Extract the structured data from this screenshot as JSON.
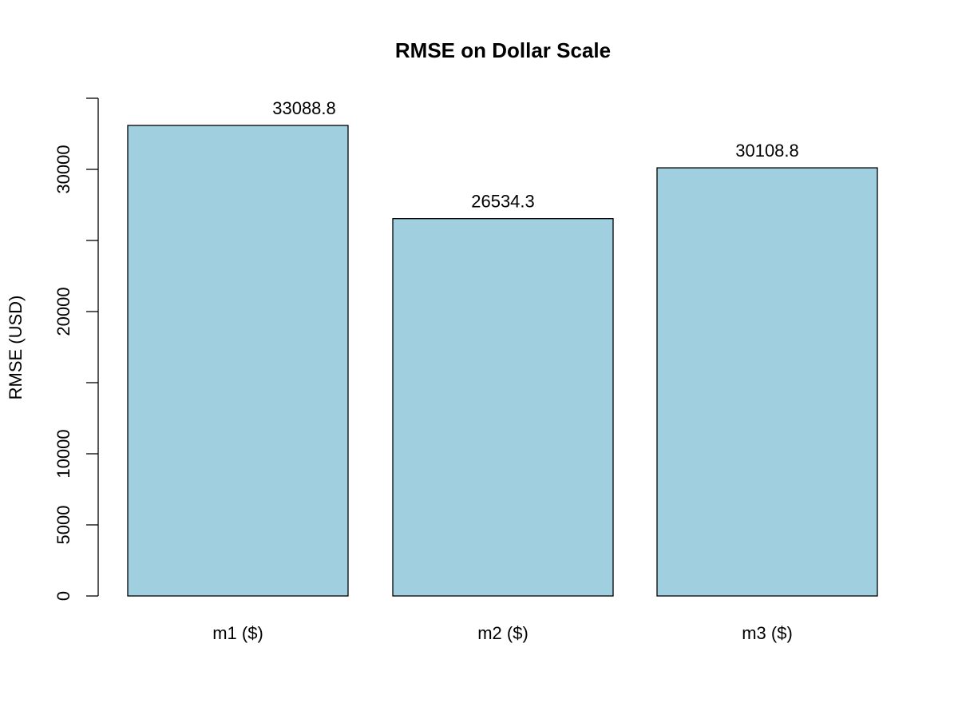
{
  "chart_data": {
    "type": "bar",
    "title": "RMSE on Dollar Scale",
    "ylabel": "RMSE (USD)",
    "xlabel": "",
    "categories": [
      "m1 ($)",
      "m2 ($)",
      "m3 ($)"
    ],
    "values": [
      33088.8,
      26534.3,
      30108.8
    ],
    "value_labels": [
      "33088.8",
      "26534.3",
      "30108.8"
    ],
    "ylim": [
      0,
      35000
    ],
    "yticks": [
      0,
      5000,
      10000,
      15000,
      20000,
      25000,
      30000,
      35000
    ],
    "ytick_labels": [
      "0",
      "5000",
      "10000",
      "",
      "20000",
      "",
      "30000",
      ""
    ],
    "bar_color": "#a0cfe0",
    "bar_edge_color": "#000000",
    "grid": false,
    "legend": "none"
  }
}
